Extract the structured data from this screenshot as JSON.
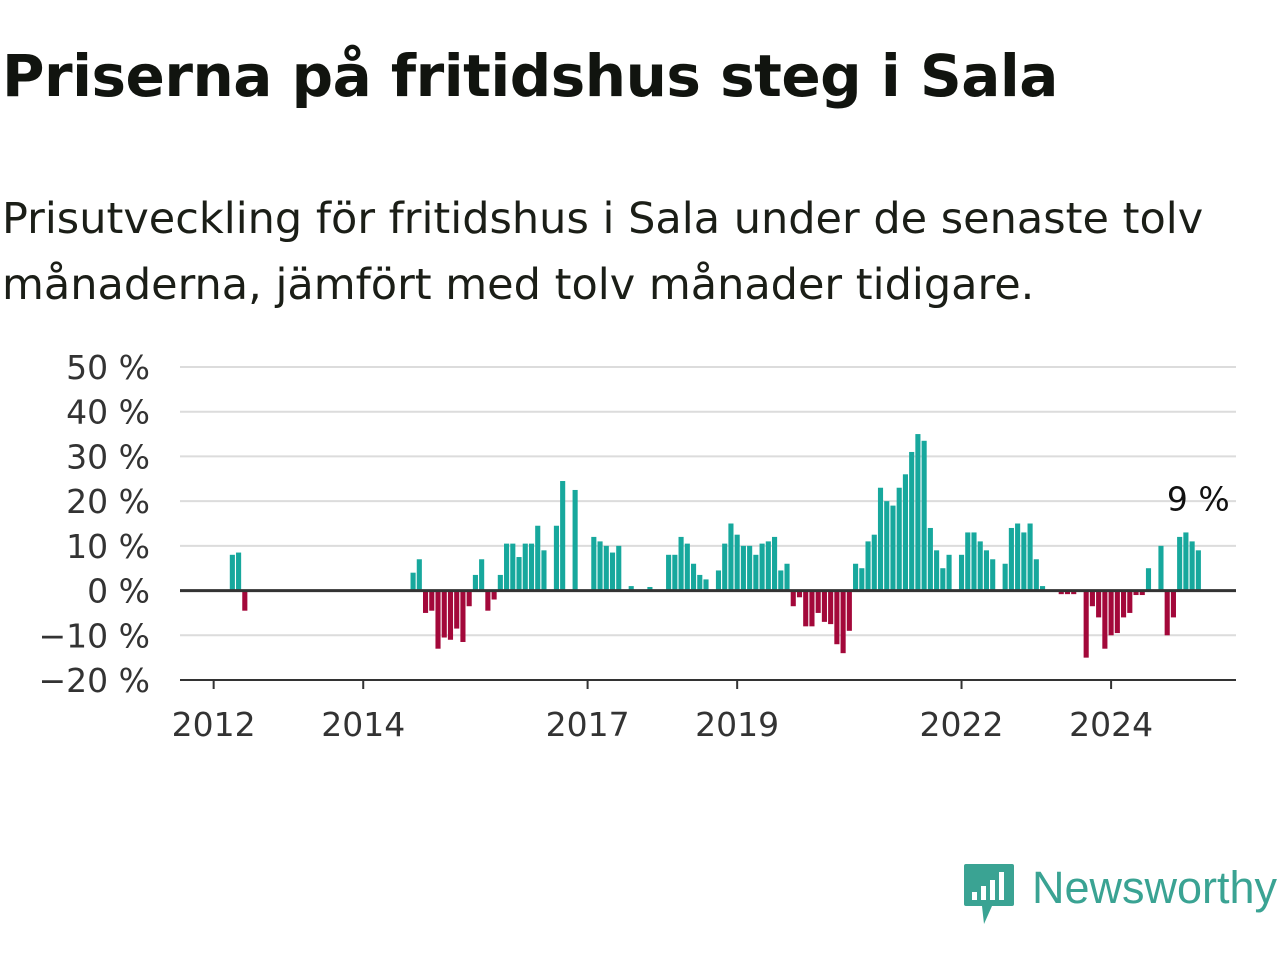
{
  "chart_data": {
    "type": "bar",
    "title": "Priserna på fritidshus steg i Sala",
    "subtitle": "Prisutveckling för fritidshus i Sala under de senaste tolv månaderna, jämfört med tolv månader tidigare.",
    "y_ticks": [
      "50 %",
      "40 %",
      "30 %",
      "20 %",
      "10 %",
      "0 %",
      "−10 %",
      "−20 %"
    ],
    "y_tick_values": [
      50,
      40,
      30,
      20,
      10,
      0,
      -10,
      -20
    ],
    "ylim": [
      -20,
      50
    ],
    "x_ticks": [
      {
        "label": "2012",
        "year": 2012.0
      },
      {
        "label": "2014",
        "year": 2014.0
      },
      {
        "label": "2017",
        "year": 2017.0
      },
      {
        "label": "2019",
        "year": 2019.0
      },
      {
        "label": "2022",
        "year": 2022.0
      },
      {
        "label": "2024",
        "year": 2024.0
      }
    ],
    "xlim": [
      2011.55,
      2025.67
    ],
    "annotation": "9 %",
    "colors": {
      "positive": "#17a89d",
      "negative": "#a3083a",
      "grid": "#dcdcdc",
      "axis": "#333333"
    },
    "series": [
      {
        "values": [
          {
            "date": "2012-04",
            "value": 8
          },
          {
            "date": "2012-05",
            "value": 8.5
          },
          {
            "date": "2012-06",
            "value": -4.5
          },
          {
            "date": "2014-09",
            "value": 4
          },
          {
            "date": "2014-10",
            "value": 7
          },
          {
            "date": "2014-11",
            "value": -5
          },
          {
            "date": "2014-12",
            "value": -4.5
          },
          {
            "date": "2015-01",
            "value": -13
          },
          {
            "date": "2015-02",
            "value": -10.5
          },
          {
            "date": "2015-03",
            "value": -11
          },
          {
            "date": "2015-04",
            "value": -8.5
          },
          {
            "date": "2015-05",
            "value": -11.5
          },
          {
            "date": "2015-06",
            "value": -3.5
          },
          {
            "date": "2015-07",
            "value": 3.5
          },
          {
            "date": "2015-08",
            "value": 7
          },
          {
            "date": "2015-09",
            "value": -4.5
          },
          {
            "date": "2015-10",
            "value": -2
          },
          {
            "date": "2015-11",
            "value": 3.5
          },
          {
            "date": "2015-12",
            "value": 10.5
          },
          {
            "date": "2016-01",
            "value": 10.5
          },
          {
            "date": "2016-02",
            "value": 7.5
          },
          {
            "date": "2016-03",
            "value": 10.5
          },
          {
            "date": "2016-04",
            "value": 10.5
          },
          {
            "date": "2016-05",
            "value": 14.5
          },
          {
            "date": "2016-06",
            "value": 9
          },
          {
            "date": "2016-08",
            "value": 14.5
          },
          {
            "date": "2016-09",
            "value": 24.5
          },
          {
            "date": "2016-11",
            "value": 22.5
          },
          {
            "date": "2017-02",
            "value": 12
          },
          {
            "date": "2017-03",
            "value": 11
          },
          {
            "date": "2017-04",
            "value": 10
          },
          {
            "date": "2017-05",
            "value": 8.5
          },
          {
            "date": "2017-06",
            "value": 10
          },
          {
            "date": "2017-08",
            "value": 1
          },
          {
            "date": "2017-11",
            "value": 0.8
          },
          {
            "date": "2018-02",
            "value": 8
          },
          {
            "date": "2018-03",
            "value": 8
          },
          {
            "date": "2018-04",
            "value": 12
          },
          {
            "date": "2018-05",
            "value": 10.5
          },
          {
            "date": "2018-06",
            "value": 6
          },
          {
            "date": "2018-07",
            "value": 3.5
          },
          {
            "date": "2018-08",
            "value": 2.5
          },
          {
            "date": "2018-10",
            "value": 4.5
          },
          {
            "date": "2018-11",
            "value": 10.5
          },
          {
            "date": "2018-12",
            "value": 15
          },
          {
            "date": "2019-01",
            "value": 12.5
          },
          {
            "date": "2019-02",
            "value": 10
          },
          {
            "date": "2019-03",
            "value": 10
          },
          {
            "date": "2019-04",
            "value": 8
          },
          {
            "date": "2019-05",
            "value": 10.5
          },
          {
            "date": "2019-06",
            "value": 11
          },
          {
            "date": "2019-07",
            "value": 12
          },
          {
            "date": "2019-08",
            "value": 4.5
          },
          {
            "date": "2019-09",
            "value": 6
          },
          {
            "date": "2019-10",
            "value": -3.5
          },
          {
            "date": "2019-11",
            "value": -1.5
          },
          {
            "date": "2019-12",
            "value": -8
          },
          {
            "date": "2020-01",
            "value": -8
          },
          {
            "date": "2020-02",
            "value": -5
          },
          {
            "date": "2020-03",
            "value": -7
          },
          {
            "date": "2020-04",
            "value": -7.5
          },
          {
            "date": "2020-05",
            "value": -12
          },
          {
            "date": "2020-06",
            "value": -14
          },
          {
            "date": "2020-07",
            "value": -9
          },
          {
            "date": "2020-08",
            "value": 6
          },
          {
            "date": "2020-09",
            "value": 5
          },
          {
            "date": "2020-10",
            "value": 11
          },
          {
            "date": "2020-11",
            "value": 12.5
          },
          {
            "date": "2020-12",
            "value": 23
          },
          {
            "date": "2021-01",
            "value": 20
          },
          {
            "date": "2021-02",
            "value": 19
          },
          {
            "date": "2021-03",
            "value": 23
          },
          {
            "date": "2021-04",
            "value": 26
          },
          {
            "date": "2021-05",
            "value": 31
          },
          {
            "date": "2021-06",
            "value": 35
          },
          {
            "date": "2021-07",
            "value": 33.5
          },
          {
            "date": "2021-08",
            "value": 14
          },
          {
            "date": "2021-09",
            "value": 9
          },
          {
            "date": "2021-10",
            "value": 5
          },
          {
            "date": "2021-11",
            "value": 8
          },
          {
            "date": "2022-01",
            "value": 8
          },
          {
            "date": "2022-02",
            "value": 13
          },
          {
            "date": "2022-03",
            "value": 13
          },
          {
            "date": "2022-04",
            "value": 11
          },
          {
            "date": "2022-05",
            "value": 9
          },
          {
            "date": "2022-06",
            "value": 7
          },
          {
            "date": "2022-08",
            "value": 6
          },
          {
            "date": "2022-09",
            "value": 14
          },
          {
            "date": "2022-10",
            "value": 15
          },
          {
            "date": "2022-11",
            "value": 13
          },
          {
            "date": "2022-12",
            "value": 15
          },
          {
            "date": "2023-01",
            "value": 7
          },
          {
            "date": "2023-02",
            "value": 1
          },
          {
            "date": "2023-05",
            "value": -0.8
          },
          {
            "date": "2023-06",
            "value": -0.8
          },
          {
            "date": "2023-07",
            "value": -0.8
          },
          {
            "date": "2023-09",
            "value": -15
          },
          {
            "date": "2023-10",
            "value": -3.5
          },
          {
            "date": "2023-11",
            "value": -6
          },
          {
            "date": "2023-12",
            "value": -13
          },
          {
            "date": "2024-01",
            "value": -10
          },
          {
            "date": "2024-02",
            "value": -9.5
          },
          {
            "date": "2024-03",
            "value": -6
          },
          {
            "date": "2024-04",
            "value": -5
          },
          {
            "date": "2024-05",
            "value": -1
          },
          {
            "date": "2024-06",
            "value": -1
          },
          {
            "date": "2024-07",
            "value": 5
          },
          {
            "date": "2024-09",
            "value": 10
          },
          {
            "date": "2024-10",
            "value": -10
          },
          {
            "date": "2024-11",
            "value": -6
          },
          {
            "date": "2024-12",
            "value": 12
          },
          {
            "date": "2025-01",
            "value": 13
          },
          {
            "date": "2025-02",
            "value": 11
          },
          {
            "date": "2025-03",
            "value": 9
          }
        ]
      }
    ]
  },
  "branding": {
    "name": "Newsworthy",
    "icon": "newsworthy-logo-icon",
    "color": "#3aa393"
  }
}
